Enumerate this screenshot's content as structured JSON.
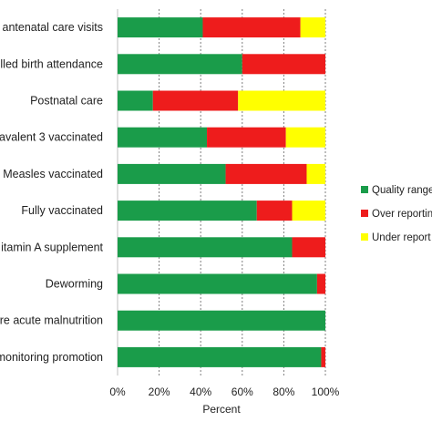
{
  "chart_data": {
    "type": "bar",
    "orientation": "horizontal",
    "stacked": true,
    "categories": [
      "r antenatal care visits",
      "lled birth attendance",
      "Postnatal care",
      "tavalent 3 vaccinated",
      "Measles vaccinated",
      "Fully vaccinated",
      "itamin A supplement",
      "Deworming",
      "ere acute malnutrition",
      "monitoring promotion"
    ],
    "series": [
      {
        "name": "Quality range",
        "color": "#1a9c4a",
        "values": [
          41,
          60,
          17,
          43,
          52,
          67,
          84,
          96,
          100,
          98
        ]
      },
      {
        "name": "Over reporting",
        "color": "#ee1c1c",
        "values": [
          47,
          40,
          41,
          38,
          39,
          17,
          16,
          4,
          0,
          2
        ]
      },
      {
        "name": "Under reporting",
        "color": "#ffff00",
        "values": [
          12,
          0,
          42,
          19,
          9,
          16,
          0,
          0,
          0,
          0
        ]
      }
    ],
    "legend_labels": [
      "Quality range",
      "Over reportin",
      "Under report"
    ],
    "xlabel": "Percent",
    "ylabel": "",
    "xlim": [
      0,
      100
    ],
    "xticks": [
      0,
      20,
      40,
      60,
      80,
      100
    ],
    "xtick_labels": [
      "0%",
      "20%",
      "40%",
      "60%",
      "80%",
      "100%"
    ],
    "grid": "vertical dashed",
    "legend_position": "right"
  }
}
